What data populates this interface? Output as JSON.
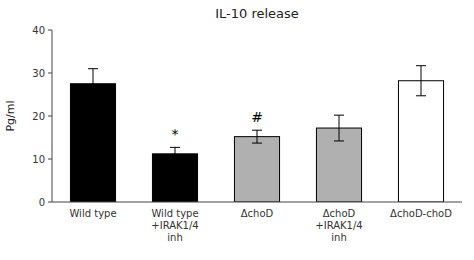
{
  "chart_data": {
    "type": "bar",
    "title": "IL-10 release",
    "ylabel": "Pg/ml",
    "categories": [
      "Wild type",
      "Wild type\n+IRAK1/4\ninh",
      "ΔchoD",
      "ΔchoD\n+IRAK1/4\ninh",
      "ΔchoD-choD"
    ],
    "values": [
      27.5,
      11.2,
      15.2,
      17.2,
      28.2
    ],
    "errors": [
      3.5,
      1.5,
      1.5,
      3.0,
      3.5
    ],
    "colors": [
      "black",
      "black",
      "#b0b0b0",
      "#b0b0b0",
      "white"
    ],
    "annotations": [
      null,
      "*",
      "#",
      null,
      null
    ],
    "ylim": [
      0,
      40
    ],
    "yticks": [
      0,
      10,
      20,
      30,
      40
    ],
    "grid": false
  }
}
